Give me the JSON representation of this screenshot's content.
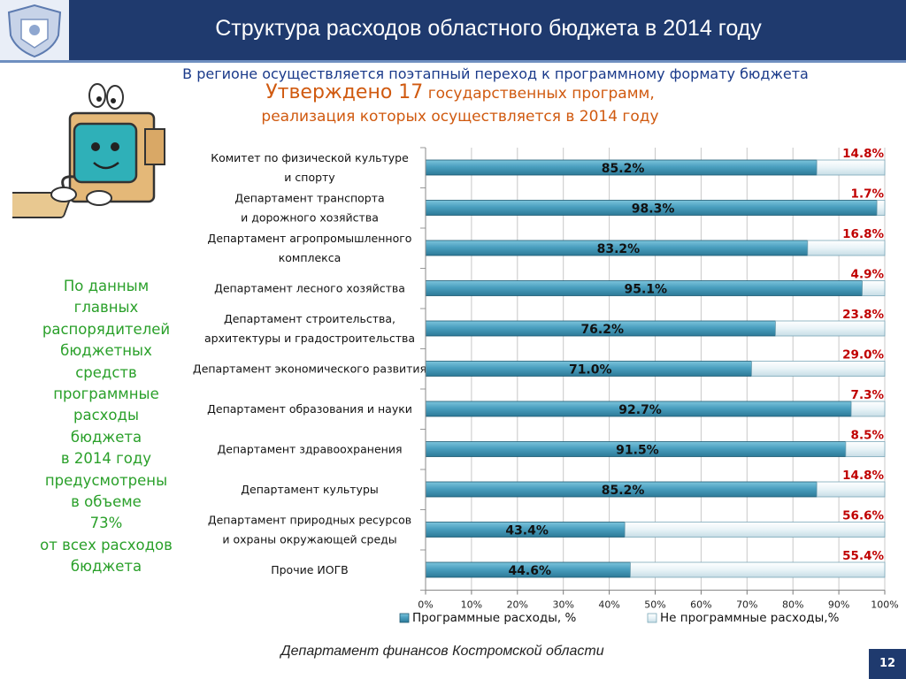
{
  "header": {
    "title": "Структура расходов областного бюджета в 2014 году"
  },
  "subtitle": "В регионе осуществляется поэтапный переход к программному формату бюджета",
  "approved": {
    "prefix": "Утверждено 17",
    "rest": " государственных программ,",
    "line2": "реализация которых осуществляется в 2014 году"
  },
  "sidebar": {
    "lines": [
      "По данным",
      "главных",
      "распорядителей",
      "бюджетных",
      "средств",
      "программные",
      "расходы",
      "бюджета",
      "в 2014 году",
      "предусмотрены",
      "в объеме",
      "73%",
      "от всех расходов",
      "бюджета"
    ]
  },
  "footer": "Департамент финансов  Костромской области",
  "page_number": "12",
  "colors": {
    "header_bg": "#1f3a6e",
    "program_bar": "#4a9fbf",
    "nonprogram_bar": "#e8f3f7",
    "percent_label": "#c00000",
    "sidebar_text": "#2aa02a",
    "subtitle_text": "#1a3a8a",
    "approved_text": "#d05a10"
  },
  "icons": {
    "logo": "coat-of-arms-icon",
    "illustration": "cartoon-computer-icon"
  },
  "chart_data": {
    "type": "bar",
    "orientation": "horizontal",
    "stacked": true,
    "categories": [
      [
        "Комитет по физической культуре",
        "и спорту"
      ],
      [
        "Департамент транспорта",
        "и дорожного хозяйства"
      ],
      [
        "Департамент агропромышленного",
        "комплекса"
      ],
      [
        "Департамент лесного хозяйства"
      ],
      [
        "Департамент строительства,",
        "архитектуры и градостроительства"
      ],
      [
        "Департамент экономического развития"
      ],
      [
        "Департамент  образования и науки"
      ],
      [
        "Департамент здравоохранения"
      ],
      [
        "Департамент культуры"
      ],
      [
        "Департамент  природных ресурсов",
        "и охраны окружающей среды"
      ],
      [
        "Прочие ИОГВ"
      ]
    ],
    "series": [
      {
        "name": "Программные расходы, %",
        "values": [
          85.2,
          98.3,
          83.2,
          95.1,
          76.2,
          71.0,
          92.7,
          91.5,
          85.2,
          43.4,
          44.6
        ],
        "labels": [
          "85.2%",
          "98.3%",
          "83.2%",
          "95.1%",
          "76.2%",
          "71.0%",
          "92.7%",
          "91.5%",
          "85.2%",
          "43.4%",
          "44.6%"
        ]
      },
      {
        "name": "Не программные расходы,%",
        "values": [
          14.8,
          1.7,
          16.8,
          4.9,
          23.8,
          29.0,
          7.3,
          8.5,
          14.8,
          56.6,
          55.4
        ],
        "labels": [
          "14.8%",
          "1.7%",
          "16.8%",
          "4.9%",
          "23.8%",
          "29.0%",
          "7.3%",
          "8.5%",
          "14.8%",
          "56.6%",
          "55.4%"
        ]
      }
    ],
    "x_ticks": [
      "0%",
      "10%",
      "20%",
      "30%",
      "40%",
      "50%",
      "60%",
      "70%",
      "80%",
      "90%",
      "100%"
    ],
    "xlim": [
      0,
      100
    ],
    "grid": true,
    "legend": "bottom"
  }
}
